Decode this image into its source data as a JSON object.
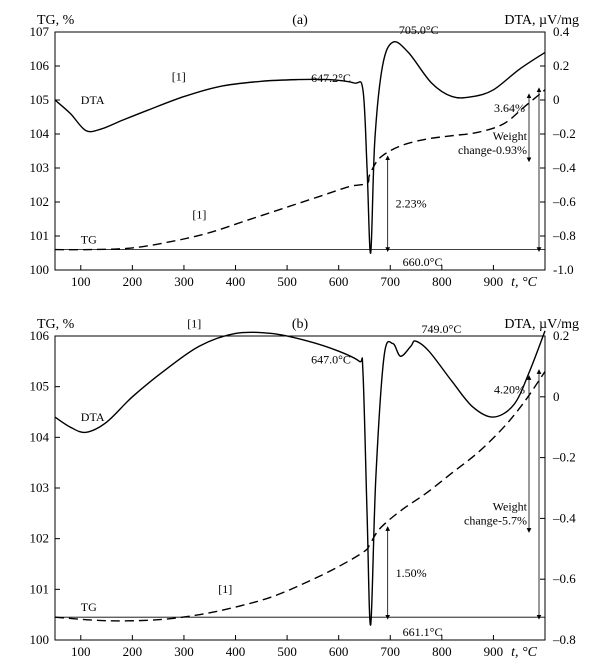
{
  "colors": {
    "fg": "#000000",
    "bg": "#ffffff"
  },
  "fonts": {
    "axis_title_pt": 14,
    "tick_pt": 13,
    "anno_pt": 12,
    "panel_label_pt": 14
  },
  "panel_a": {
    "label": "(a)",
    "left_axis": {
      "title": "TG, %",
      "min": 100,
      "max": 107,
      "ticks": [
        100,
        101,
        102,
        103,
        104,
        105,
        106,
        107
      ]
    },
    "right_axis": {
      "title": "DTA, µV/mg",
      "min": -1.0,
      "max": 0.4,
      "ticks": [
        -1.0,
        -0.8,
        -0.6,
        -0.4,
        -0.2,
        0,
        0.2,
        0.4
      ]
    },
    "x_axis": {
      "title": "t, °C",
      "min": 50,
      "max": 1000,
      "ticks": [
        100,
        200,
        300,
        400,
        500,
        600,
        700,
        800,
        900
      ]
    },
    "dta": {
      "label": "DTA",
      "one_label": "[1]",
      "peak1": "647.2°C",
      "peak2": "705.0°C",
      "points": [
        [
          50,
          105.0
        ],
        [
          80,
          104.6
        ],
        [
          110,
          104.1
        ],
        [
          140,
          104.15
        ],
        [
          180,
          104.4
        ],
        [
          230,
          104.7
        ],
        [
          300,
          105.1
        ],
        [
          370,
          105.4
        ],
        [
          450,
          105.55
        ],
        [
          520,
          105.6
        ],
        [
          580,
          105.6
        ],
        [
          630,
          105.5
        ],
        [
          647,
          105.3
        ],
        [
          655,
          103.0
        ],
        [
          662,
          100.5
        ],
        [
          670,
          103.8
        ],
        [
          685,
          106.0
        ],
        [
          705,
          106.7
        ],
        [
          735,
          106.4
        ],
        [
          780,
          105.5
        ],
        [
          820,
          105.1
        ],
        [
          860,
          105.1
        ],
        [
          900,
          105.3
        ],
        [
          950,
          105.9
        ],
        [
          1000,
          106.4
        ]
      ]
    },
    "tg": {
      "label": "TG",
      "one_label": "[1]",
      "end_temp": "660.0°C",
      "ann_223": "2.23%",
      "ann_364": "3.64%",
      "ann_weight": "Weight",
      "ann_change": "change-0.93%",
      "points": [
        [
          50,
          100.6
        ],
        [
          120,
          100.6
        ],
        [
          200,
          100.65
        ],
        [
          280,
          100.85
        ],
        [
          350,
          101.1
        ],
        [
          420,
          101.45
        ],
        [
          490,
          101.8
        ],
        [
          560,
          102.15
        ],
        [
          620,
          102.45
        ],
        [
          655,
          102.55
        ],
        [
          660,
          102.8
        ],
        [
          680,
          103.3
        ],
        [
          720,
          103.65
        ],
        [
          770,
          103.85
        ],
        [
          820,
          103.95
        ],
        [
          870,
          104.05
        ],
        [
          920,
          104.3
        ],
        [
          960,
          104.8
        ],
        [
          1000,
          105.3
        ]
      ]
    }
  },
  "panel_b": {
    "label": "(b)",
    "left_axis": {
      "title": "TG, %",
      "min": 100,
      "max": 106,
      "ticks": [
        100,
        101,
        102,
        103,
        104,
        105,
        106
      ]
    },
    "right_axis": {
      "title": "DTA, µV/mg",
      "min": -0.8,
      "max": 0.2,
      "ticks": [
        -0.8,
        -0.6,
        -0.4,
        -0.2,
        0,
        0.2
      ]
    },
    "x_axis": {
      "title": "t, °C",
      "min": 50,
      "max": 1000,
      "ticks": [
        100,
        200,
        300,
        400,
        500,
        600,
        700,
        800,
        900
      ]
    },
    "dta": {
      "label": "DTA",
      "one_label": "[1]",
      "peak1": "647.0°C",
      "peak2": "749.0°C",
      "points": [
        [
          50,
          104.4
        ],
        [
          80,
          104.2
        ],
        [
          110,
          104.1
        ],
        [
          150,
          104.3
        ],
        [
          200,
          104.8
        ],
        [
          260,
          105.3
        ],
        [
          330,
          105.8
        ],
        [
          400,
          106.05
        ],
        [
          470,
          106.05
        ],
        [
          540,
          105.9
        ],
        [
          600,
          105.7
        ],
        [
          640,
          105.5
        ],
        [
          647,
          105.3
        ],
        [
          655,
          102.5
        ],
        [
          662,
          100.3
        ],
        [
          672,
          103.2
        ],
        [
          688,
          105.6
        ],
        [
          705,
          105.85
        ],
        [
          720,
          105.6
        ],
        [
          740,
          105.8
        ],
        [
          749,
          105.9
        ],
        [
          775,
          105.7
        ],
        [
          820,
          105.1
        ],
        [
          860,
          104.6
        ],
        [
          900,
          104.4
        ],
        [
          940,
          104.65
        ],
        [
          970,
          105.3
        ],
        [
          1000,
          106.1
        ]
      ]
    },
    "tg": {
      "label": "TG",
      "one_label": "[1]",
      "end_temp": "661.1°C",
      "ann_150": "1.50%",
      "ann_420": "4.20%",
      "ann_weight": "Weight",
      "ann_change": "change-5.7%",
      "points": [
        [
          50,
          100.45
        ],
        [
          150,
          100.38
        ],
        [
          250,
          100.4
        ],
        [
          330,
          100.5
        ],
        [
          400,
          100.65
        ],
        [
          470,
          100.85
        ],
        [
          540,
          101.15
        ],
        [
          600,
          101.45
        ],
        [
          650,
          101.75
        ],
        [
          661,
          101.9
        ],
        [
          680,
          102.2
        ],
        [
          720,
          102.55
        ],
        [
          770,
          102.9
        ],
        [
          820,
          103.3
        ],
        [
          870,
          103.7
        ],
        [
          920,
          104.2
        ],
        [
          960,
          104.7
        ],
        [
          1000,
          105.3
        ]
      ]
    }
  }
}
